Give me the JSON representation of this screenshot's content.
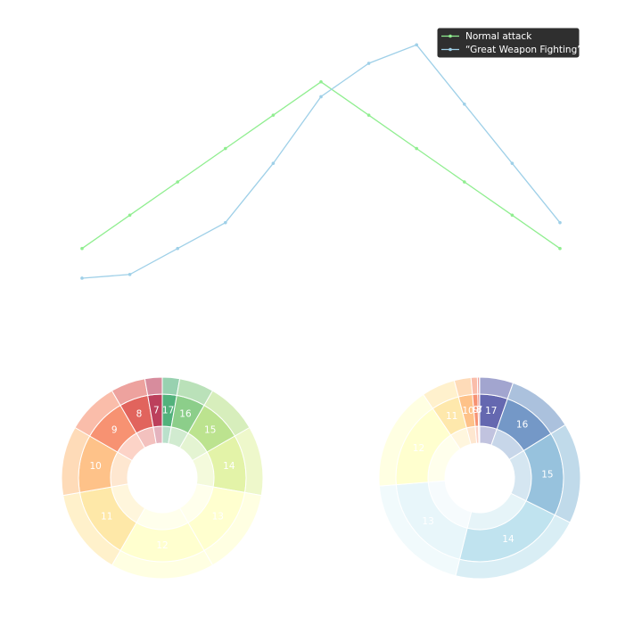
{
  "chart_data": [
    {
      "type": "line",
      "x": [
        7,
        8,
        9,
        10,
        11,
        12,
        13,
        14,
        15,
        16,
        17
      ],
      "series": [
        {
          "name": "Normal attack",
          "color": "#90ee90",
          "values": [
            0.0278,
            0.0556,
            0.0833,
            0.1111,
            0.1389,
            0.1667,
            0.1389,
            0.1111,
            0.0833,
            0.0556,
            0.0278
          ]
        },
        {
          "name": "“Great Weapon Fighting”",
          "color": "#9fd0e8",
          "values": [
            0.0031,
            0.0062,
            0.0278,
            0.0494,
            0.0988,
            0.1543,
            0.1821,
            0.1975,
            0.1481,
            0.0988,
            0.0494
          ]
        }
      ],
      "ylim": [
        -0.04,
        0.22
      ],
      "legend": "top-right",
      "grid": false,
      "axes_visible": false
    },
    {
      "type": "pie",
      "style": "nested-donut",
      "labels": [
        "17",
        "16",
        "15",
        "14",
        "13",
        "12",
        "11",
        "10",
        "9",
        "8",
        "7"
      ],
      "values": [
        1,
        2,
        3,
        4,
        5,
        6,
        5,
        4,
        3,
        2,
        1
      ],
      "colors": [
        "#1a9850",
        "#66bd63",
        "#a6d96a",
        "#d9ef8b",
        "#ffffbf",
        "#ffffbf",
        "#fee08b",
        "#fdae61",
        "#f46d43",
        "#d73027",
        "#a50026"
      ]
    },
    {
      "type": "pie",
      "style": "nested-donut",
      "labels": [
        "17",
        "16",
        "15",
        "14",
        "13",
        "12",
        "11",
        "10",
        "9",
        "8",
        "7"
      ],
      "values": [
        16,
        32,
        48,
        64,
        59,
        50,
        16,
        8,
        3,
        1,
        0.1
      ],
      "colors": [
        "#313695",
        "#4575b4",
        "#74add1",
        "#abd9e9",
        "#e0f3f8",
        "#ffffbf",
        "#fee090",
        "#fdae61",
        "#f46d43",
        "#d73027",
        "#a50026"
      ]
    }
  ]
}
